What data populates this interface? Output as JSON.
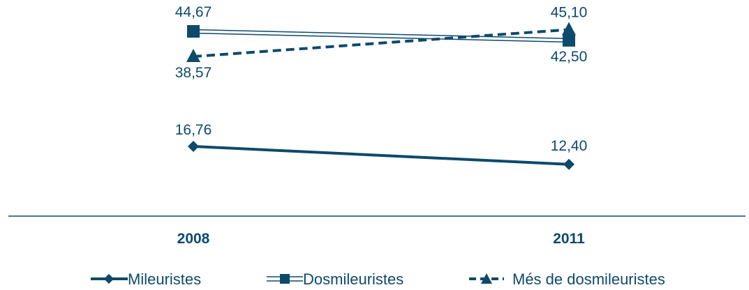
{
  "colors": {
    "series": "#0d4a6b",
    "axis": "#0d4a6b",
    "background": "#ffffff"
  },
  "chart_data": {
    "type": "line",
    "x": [
      "2008",
      "2011"
    ],
    "ylim": [
      0,
      50
    ],
    "grid": false,
    "legend_position": "bottom",
    "series": [
      {
        "name": "Mileuristes",
        "values": [
          16.76,
          12.4
        ],
        "labels": [
          "16,76",
          "12,40"
        ],
        "marker": "diamond",
        "line": "solid"
      },
      {
        "name": "Dosmileuristes",
        "values": [
          44.67,
          42.5
        ],
        "labels": [
          "44,67",
          "42,50"
        ],
        "marker": "square",
        "line": "double"
      },
      {
        "name": "Més de dosmileuristes",
        "values": [
          38.57,
          45.1
        ],
        "labels": [
          "38,57",
          "45,10"
        ],
        "marker": "triangle",
        "line": "dashed"
      }
    ]
  }
}
